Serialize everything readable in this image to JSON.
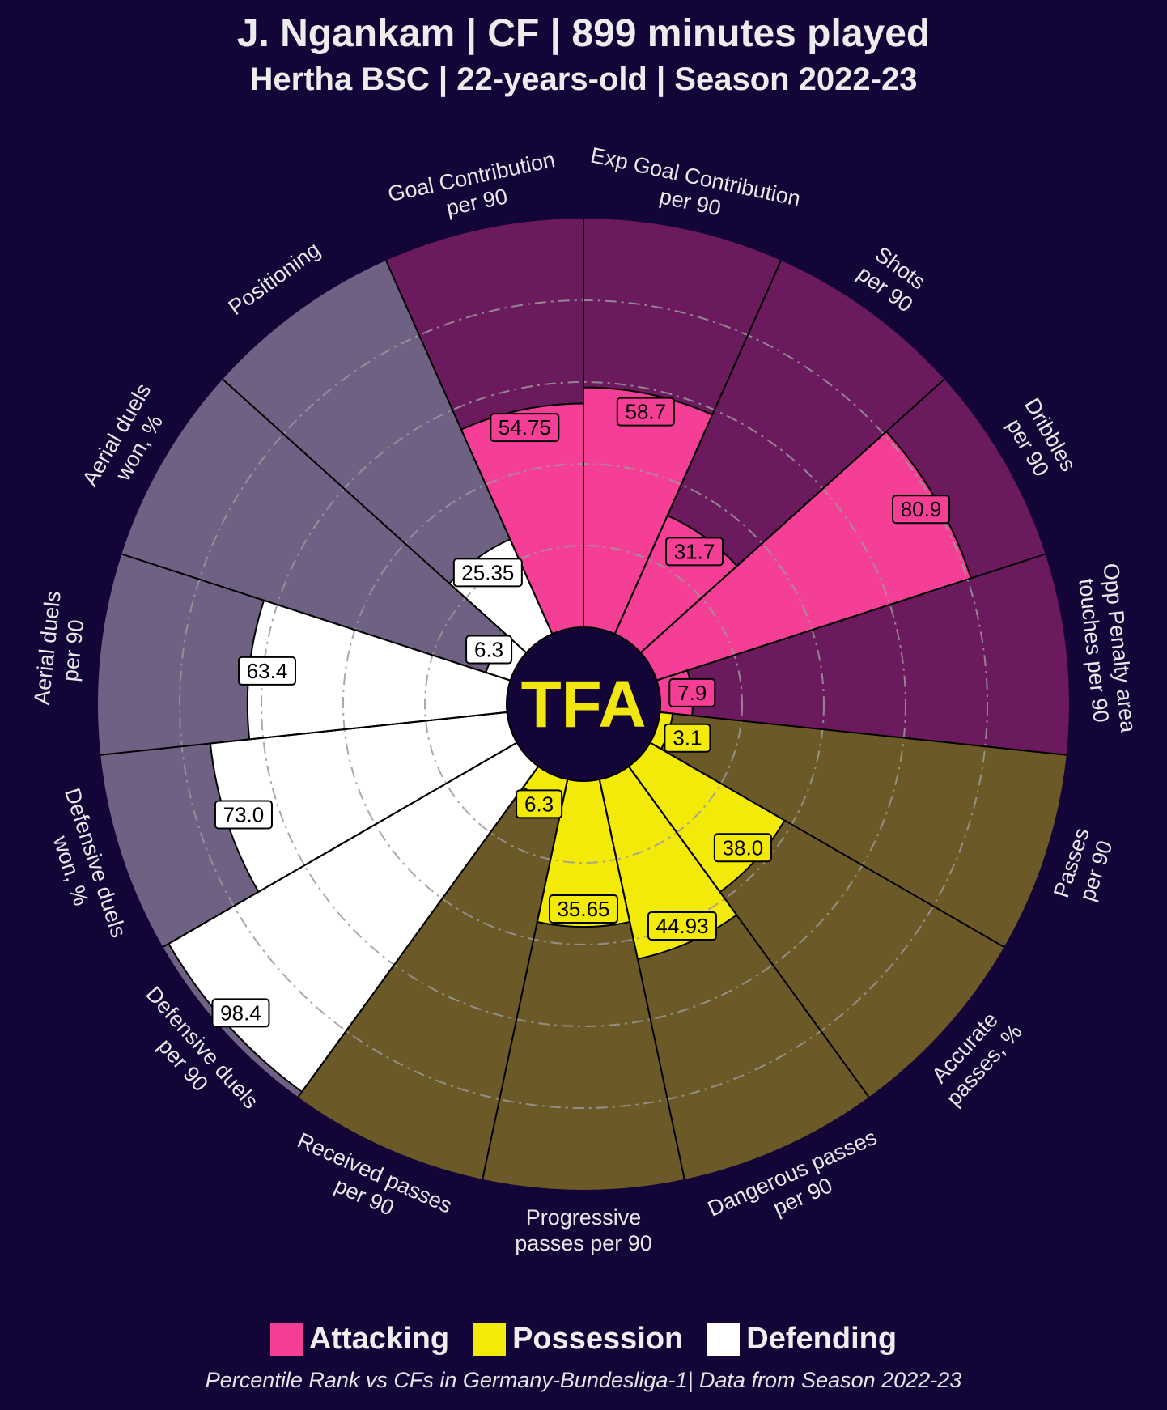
{
  "header": {
    "title": "J. Ngankam | CF | 899 minutes played",
    "subtitle": "Hertha BSC | 22-years-old | Season 2022-23"
  },
  "center_logo": "TFA",
  "legend": [
    {
      "label": "Attacking",
      "color": "#f53f96"
    },
    {
      "label": "Possession",
      "color": "#f3ea0a"
    },
    {
      "label": "Defending",
      "color": "#ffffff"
    }
  ],
  "footer": "Percentile Rank vs CFs in Germany-Bundesliga-1| Data from Season 2022-23",
  "colors": {
    "background": "#140538",
    "attacking_bg": "#6a1a5d",
    "possession_bg": "#6b5a28",
    "defending_bg": "#6e6183",
    "grid": "#9a9a9a",
    "logo_text": "#f1e60f"
  },
  "chart_data": {
    "type": "pizza",
    "range": [
      0,
      100
    ],
    "gridlines": [
      20,
      40,
      60,
      80
    ],
    "categories": [
      "Goal Contribution per 90",
      "Exp Goal Contribution per 90",
      "Shots per 90",
      "Dribbles per 90",
      "Opp Penalty area touches per 90",
      "Passes per 90",
      "Accurate passes, %",
      "Dangerous passes per 90",
      "Progressive passes per 90",
      "Received passes per 90",
      "Defensive duels per 90",
      "Defensive duels won, %",
      "Aerial duels per 90",
      "Aerial duels won, %",
      "Positioning"
    ],
    "labels": [
      [
        "Goal Contribution",
        "per 90"
      ],
      [
        "Exp Goal Contribution",
        "per 90"
      ],
      [
        "Shots",
        "per 90"
      ],
      [
        "Dribbles",
        "per 90"
      ],
      [
        "Opp Penalty area",
        "touches per 90"
      ],
      [
        "Passes",
        "per 90"
      ],
      [
        "Accurate",
        "passes, %"
      ],
      [
        "Dangerous passes",
        "per 90"
      ],
      [
        "Progressive",
        "passes per 90"
      ],
      [
        "Received passes",
        "per 90"
      ],
      [
        "Defensive duels",
        "per 90"
      ],
      [
        "Defensive duels",
        "won, %"
      ],
      [
        "Aerial duels",
        "per 90"
      ],
      [
        "Aerial duels",
        "won, %"
      ],
      [
        "Positioning"
      ]
    ],
    "groups": [
      "Attacking",
      "Attacking",
      "Attacking",
      "Attacking",
      "Attacking",
      "Possession",
      "Possession",
      "Possession",
      "Possession",
      "Possession",
      "Defending",
      "Defending",
      "Defending",
      "Defending",
      "Defending"
    ],
    "values": [
      54.75,
      58.7,
      31.7,
      80.9,
      7.9,
      3.1,
      38.0,
      44.93,
      35.65,
      6.3,
      98.4,
      73.0,
      63.4,
      6.3,
      25.35
    ],
    "value_labels": [
      "54.75",
      "58.7",
      "31.7",
      "80.9",
      "7.9",
      "3.1",
      "38.0",
      "44.93",
      "35.65",
      "6.3",
      "98.4",
      "73.0",
      "63.4",
      "6.3",
      "25.35"
    ]
  }
}
